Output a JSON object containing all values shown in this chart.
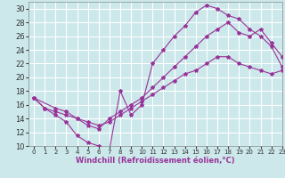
{
  "background_color": "#cce8ea",
  "grid_color": "#ffffff",
  "line_color": "#993399",
  "marker": "*",
  "marker_size": 3,
  "xlabel": "Windchill (Refroidissement éolien,°C)",
  "xlim": [
    -0.5,
    23
  ],
  "ylim": [
    10,
    31
  ],
  "xticks": [
    0,
    1,
    2,
    3,
    4,
    5,
    6,
    7,
    8,
    9,
    10,
    11,
    12,
    13,
    14,
    15,
    16,
    17,
    18,
    19,
    20,
    21,
    22,
    23
  ],
  "yticks": [
    10,
    12,
    14,
    16,
    18,
    20,
    22,
    24,
    26,
    28,
    30
  ],
  "curve1_x": [
    0,
    1,
    2,
    3,
    4,
    5,
    6,
    7,
    8,
    9,
    10,
    11,
    12,
    13,
    14,
    15,
    16,
    17,
    18,
    19,
    20,
    21,
    22,
    23
  ],
  "curve1_y": [
    17,
    15.5,
    14.5,
    13.5,
    11.5,
    10.5,
    10,
    9.5,
    18,
    14.5,
    16,
    22,
    24,
    26,
    27.5,
    29.5,
    30.5,
    30,
    29,
    28.5,
    27,
    26,
    24.5,
    21.5
  ],
  "curve2_x": [
    0,
    2,
    3,
    4,
    5,
    6,
    7,
    8,
    9,
    10,
    11,
    12,
    13,
    14,
    15,
    16,
    17,
    18,
    19,
    20,
    21,
    22,
    23
  ],
  "curve2_y": [
    17,
    15.5,
    15,
    14,
    13,
    12.5,
    14,
    15,
    16,
    17,
    18.5,
    20,
    21.5,
    23,
    24.5,
    26,
    27,
    28,
    26.5,
    26,
    27,
    25,
    23
  ],
  "curve3_x": [
    0,
    1,
    2,
    3,
    4,
    5,
    6,
    7,
    8,
    9,
    10,
    11,
    12,
    13,
    14,
    15,
    16,
    17,
    18,
    19,
    20,
    21,
    22,
    23
  ],
  "curve3_y": [
    17,
    15.5,
    15,
    14.5,
    14,
    13.5,
    13,
    13.5,
    14.5,
    15.5,
    16.5,
    17.5,
    18.5,
    19.5,
    20.5,
    21,
    22,
    23,
    23,
    22,
    21.5,
    21,
    20.5,
    21
  ],
  "xlabel_color": "#993399",
  "xlabel_fontsize": 6,
  "tick_fontsize": 5,
  "spine_color": "#888888"
}
